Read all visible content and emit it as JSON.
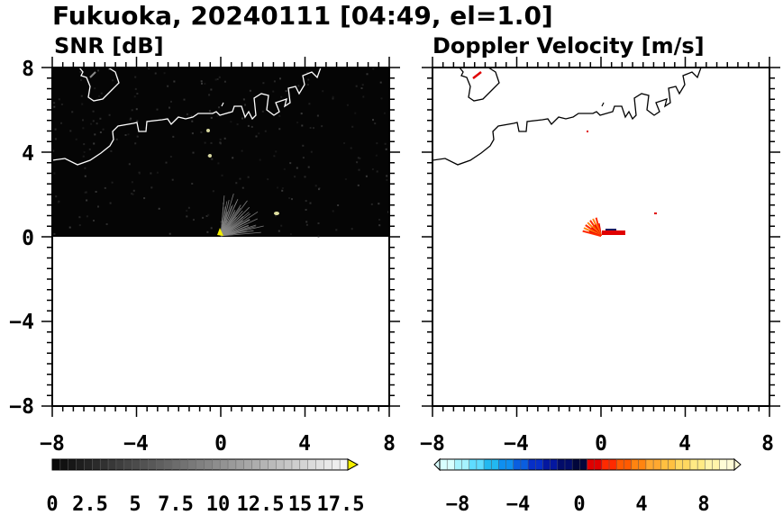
{
  "figure": {
    "title": "Fukuoka, 20240111 [04:49, el=1.0]"
  },
  "chart_data": [
    {
      "type": "heatmap",
      "title": "SNR [dB]",
      "xlabel": "",
      "ylabel": "",
      "xlim": [
        -8,
        8
      ],
      "ylim": [
        -8,
        8
      ],
      "x_ticks": [
        "−8",
        "−4",
        "0",
        "4",
        "8"
      ],
      "y_ticks": [
        "8",
        "4",
        "0",
        "−4",
        "−8"
      ],
      "grid": false,
      "data_coverage": {
        "y_min": 0,
        "y_max": 8
      },
      "colorbar": {
        "colormap": "grayscale",
        "min": 0,
        "max": 18.5,
        "extend": "max",
        "extend_color": "#f4f000",
        "tick_labels": [
          "0",
          "2.5",
          "5",
          "7.5",
          "10",
          "12.5",
          "15",
          "17.5"
        ]
      }
    },
    {
      "type": "heatmap",
      "title": "Doppler Velocity [m/s]",
      "xlabel": "",
      "ylabel": "",
      "xlim": [
        -8,
        8
      ],
      "ylim": [
        -8,
        8
      ],
      "x_ticks": [
        "−8",
        "−4",
        "0",
        "4",
        "8"
      ],
      "y_ticks": [],
      "grid": false,
      "colorbar": {
        "colormap": "diverging blue–red",
        "min": -10,
        "max": 10,
        "extend": "both",
        "tick_labels": [
          "−8",
          "−4",
          "0",
          "4",
          "8"
        ],
        "colors": [
          "#d8ffff",
          "#a6f3ff",
          "#5fdcff",
          "#22b8f0",
          "#0f8ff0",
          "#0a5ee0",
          "#062fc8",
          "#0417a0",
          "#020c6a",
          "#01063c",
          "#e00000",
          "#ff2a00",
          "#ff5a00",
          "#ff8410",
          "#ffa830",
          "#ffc040",
          "#ffd860",
          "#ffea84",
          "#fff4aa",
          "#fffcd6"
        ]
      }
    }
  ]
}
